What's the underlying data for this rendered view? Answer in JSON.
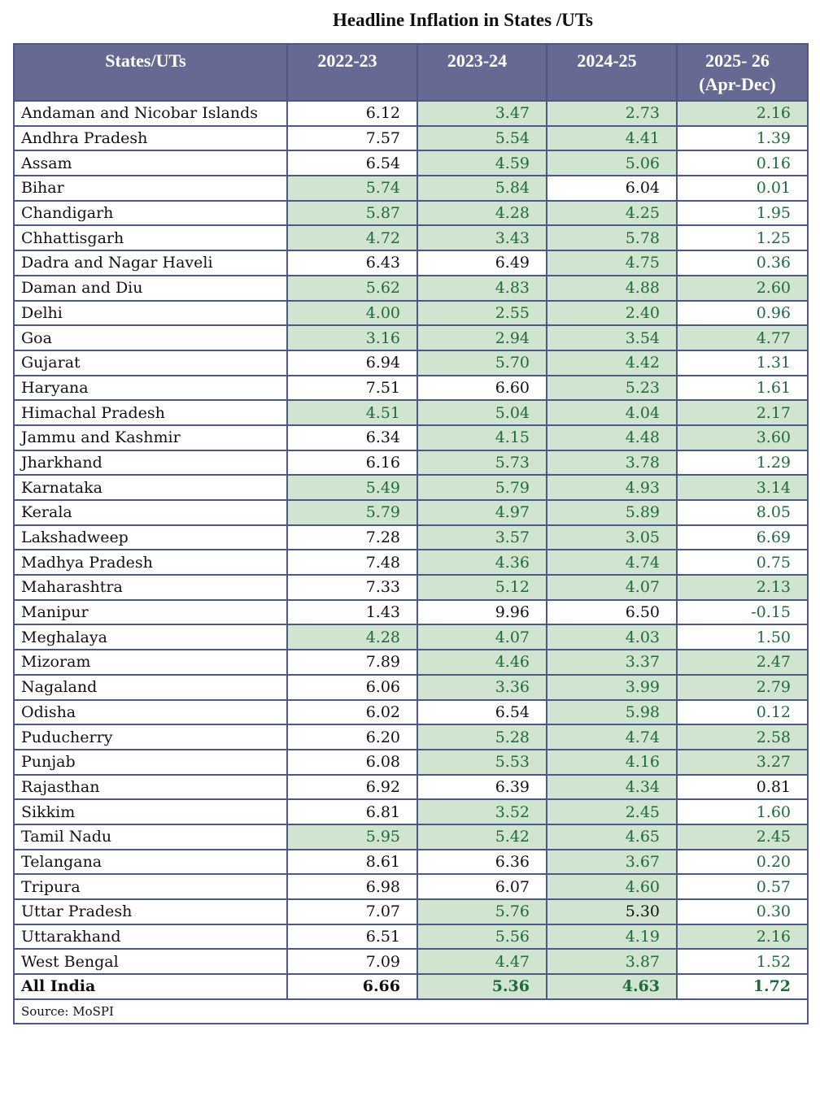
{
  "title": "Headline Inflation in States /UTs",
  "colors": {
    "header_bg": "#666a93",
    "highlight_bg": "#d1e4cf",
    "highlight_text": "#1d6b3b",
    "border": "#4b5787"
  },
  "columns": [
    "States/UTs",
    "2022-23",
    "2023-24",
    "2024-25",
    "2025- 26 (Apr-Dec)"
  ],
  "style_legend": {
    "G": "green background, green text",
    "g": "white background, green text",
    "w": "white background, black text",
    "B": "green background, black text"
  },
  "rows": [
    {
      "name": "Andaman and Nicobar Islands",
      "values": [
        "6.12",
        "3.47",
        "2.73",
        "2.16"
      ],
      "styles": "wGGG"
    },
    {
      "name": "Andhra Pradesh",
      "values": [
        "7.57",
        "5.54",
        "4.41",
        "1.39"
      ],
      "styles": "wGGg"
    },
    {
      "name": "Assam",
      "values": [
        "6.54",
        "4.59",
        "5.06",
        "0.16"
      ],
      "styles": "wGGg"
    },
    {
      "name": "Bihar",
      "values": [
        "5.74",
        "5.84",
        "6.04",
        "0.01"
      ],
      "styles": "GGwg"
    },
    {
      "name": "Chandigarh",
      "values": [
        "5.87",
        "4.28",
        "4.25",
        "1.95"
      ],
      "styles": "GGGg"
    },
    {
      "name": "Chhattisgarh",
      "values": [
        "4.72",
        "3.43",
        "5.78",
        "1.25"
      ],
      "styles": "GGGg"
    },
    {
      "name": "Dadra and Nagar Haveli",
      "values": [
        "6.43",
        "6.49",
        "4.75",
        "0.36"
      ],
      "styles": "wwGg"
    },
    {
      "name": "Daman and Diu",
      "values": [
        "5.62",
        "4.83",
        "4.88",
        "2.60"
      ],
      "styles": "GGGG"
    },
    {
      "name": "Delhi",
      "values": [
        "4.00",
        "2.55",
        "2.40",
        "0.96"
      ],
      "styles": "GGGg"
    },
    {
      "name": "Goa",
      "values": [
        "3.16",
        "2.94",
        "3.54",
        "4.77"
      ],
      "styles": "GGGG"
    },
    {
      "name": "Gujarat",
      "values": [
        "6.94",
        "5.70",
        "4.42",
        "1.31"
      ],
      "styles": "wGGg"
    },
    {
      "name": "Haryana",
      "values": [
        "7.51",
        "6.60",
        "5.23",
        "1.61"
      ],
      "styles": "wwGg"
    },
    {
      "name": "Himachal Pradesh",
      "values": [
        "4.51",
        "5.04",
        "4.04",
        "2.17"
      ],
      "styles": "GGGG"
    },
    {
      "name": "Jammu and Kashmir",
      "values": [
        "6.34",
        "4.15",
        "4.48",
        "3.60"
      ],
      "styles": "wGGG"
    },
    {
      "name": "Jharkhand",
      "values": [
        "6.16",
        "5.73",
        "3.78",
        "1.29"
      ],
      "styles": "wGGg"
    },
    {
      "name": "Karnataka",
      "values": [
        "5.49",
        "5.79",
        "4.93",
        "3.14"
      ],
      "styles": "GGGG"
    },
    {
      "name": "Kerala",
      "values": [
        "5.79",
        "4.97",
        "5.89",
        "8.05"
      ],
      "styles": "GGGg"
    },
    {
      "name": "Lakshadweep",
      "values": [
        "7.28",
        "3.57",
        "3.05",
        "6.69"
      ],
      "styles": "wGGg"
    },
    {
      "name": "Madhya Pradesh",
      "values": [
        "7.48",
        "4.36",
        "4.74",
        "0.75"
      ],
      "styles": "wGGg"
    },
    {
      "name": "Maharashtra",
      "values": [
        "7.33",
        "5.12",
        "4.07",
        "2.13"
      ],
      "styles": "wGGG"
    },
    {
      "name": "Manipur",
      "values": [
        "1.43",
        "9.96",
        "6.50",
        "-0.15"
      ],
      "styles": "wwwg"
    },
    {
      "name": "Meghalaya",
      "values": [
        "4.28",
        "4.07",
        "4.03",
        "1.50"
      ],
      "styles": "GGGg"
    },
    {
      "name": "Mizoram",
      "values": [
        "7.89",
        "4.46",
        "3.37",
        "2.47"
      ],
      "styles": "wGGG"
    },
    {
      "name": "Nagaland",
      "values": [
        "6.06",
        "3.36",
        "3.99",
        "2.79"
      ],
      "styles": "wGGG"
    },
    {
      "name": "Odisha",
      "values": [
        "6.02",
        "6.54",
        "5.98",
        "0.12"
      ],
      "styles": "wwGg"
    },
    {
      "name": "Puducherry",
      "values": [
        "6.20",
        "5.28",
        "4.74",
        "2.58"
      ],
      "styles": "wGGG"
    },
    {
      "name": "Punjab",
      "values": [
        "6.08",
        "5.53",
        "4.16",
        "3.27"
      ],
      "styles": "wGGG"
    },
    {
      "name": "Rajasthan",
      "values": [
        "6.92",
        "6.39",
        "4.34",
        "0.81"
      ],
      "styles": "wwGw"
    },
    {
      "name": "Sikkim",
      "values": [
        "6.81",
        "3.52",
        "2.45",
        "1.60"
      ],
      "styles": "wGGg"
    },
    {
      "name": "Tamil Nadu",
      "values": [
        "5.95",
        "5.42",
        "4.65",
        "2.45"
      ],
      "styles": "GGGG"
    },
    {
      "name": "Telangana",
      "values": [
        "8.61",
        "6.36",
        "3.67",
        "0.20"
      ],
      "styles": "wwGg"
    },
    {
      "name": "Tripura",
      "values": [
        "6.98",
        "6.07",
        "4.60",
        "0.57"
      ],
      "styles": "wwGg"
    },
    {
      "name": "Uttar Pradesh",
      "values": [
        "7.07",
        "5.76",
        "5.30",
        "0.30"
      ],
      "styles": "wGBg"
    },
    {
      "name": "Uttarakhand",
      "values": [
        "6.51",
        "5.56",
        "4.19",
        "2.16"
      ],
      "styles": "wGGG"
    },
    {
      "name": "West Bengal",
      "values": [
        "7.09",
        "4.47",
        "3.87",
        "1.52"
      ],
      "styles": "wGGg"
    }
  ],
  "total": {
    "name": "All India",
    "values": [
      "6.66",
      "5.36",
      "4.63",
      "1.72"
    ],
    "styles": "wGGg"
  },
  "source": "Source: MoSPI"
}
